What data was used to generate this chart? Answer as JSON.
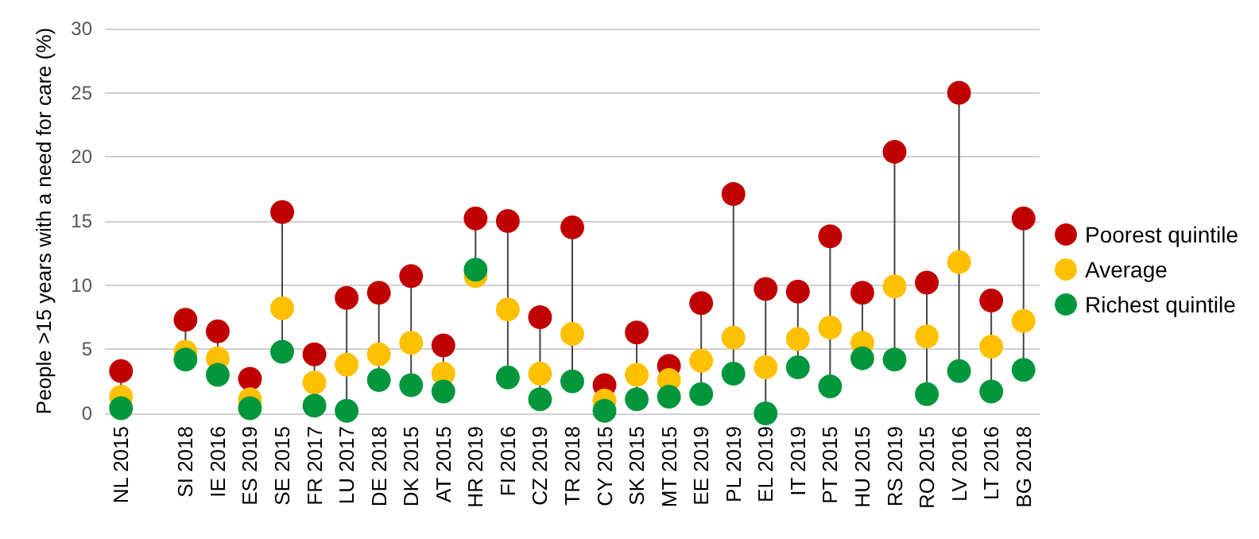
{
  "chart_data": {
    "type": "scatter",
    "ylabel": "People >15 years with a need for care (%)",
    "categories": [
      "NL 2015",
      null,
      "SI 2018",
      "IE 2016",
      "ES 2019",
      "SE 2015",
      "FR 2017",
      "LU 2017",
      "DE 2018",
      "DK 2015",
      "AT 2015",
      "HR 2019",
      "FI 2016",
      "CZ 2019",
      "TR 2018",
      "CY 2015",
      "SK 2015",
      "MT 2015",
      "EE 2019",
      "PL 2019",
      "EL 2019",
      "IT 2019",
      "PT 2015",
      "HU 2015",
      "RS 2019",
      "RO 2015",
      "LV 2016",
      "LT 2016",
      "BG 2018"
    ],
    "series": [
      {
        "name": "Poorest quintile",
        "color": "#c00000",
        "values": [
          3.3,
          null,
          7.3,
          6.4,
          2.7,
          15.7,
          4.6,
          9.0,
          9.4,
          10.7,
          5.3,
          15.2,
          15.0,
          7.5,
          14.5,
          2.2,
          6.3,
          3.7,
          8.6,
          17.1,
          9.7,
          9.5,
          13.8,
          9.4,
          20.4,
          10.2,
          25.0,
          8.8,
          15.2
        ]
      },
      {
        "name": "Average",
        "color": "#ffc000",
        "values": [
          1.3,
          null,
          4.8,
          4.3,
          1.1,
          8.2,
          2.4,
          3.8,
          4.6,
          5.5,
          3.1,
          10.7,
          8.1,
          3.1,
          6.2,
          1.0,
          3.0,
          2.6,
          4.1,
          5.9,
          3.6,
          5.8,
          6.7,
          5.5,
          9.9,
          6.0,
          11.8,
          5.2,
          7.2
        ]
      },
      {
        "name": "Richest quintile",
        "color": "#00963c",
        "values": [
          0.4,
          null,
          4.2,
          3.0,
          0.4,
          4.8,
          0.6,
          0.2,
          2.6,
          2.2,
          1.7,
          11.2,
          2.8,
          1.1,
          2.5,
          0.2,
          1.1,
          1.3,
          1.5,
          3.1,
          0.0,
          3.6,
          2.1,
          4.3,
          4.2,
          1.5,
          3.3,
          1.7,
          3.4
        ]
      }
    ],
    "ylim": [
      0,
      30
    ],
    "yticks": [
      0,
      5,
      10,
      15,
      20,
      25,
      30
    ],
    "grid": "y",
    "legend": "right",
    "marker": "circle"
  }
}
